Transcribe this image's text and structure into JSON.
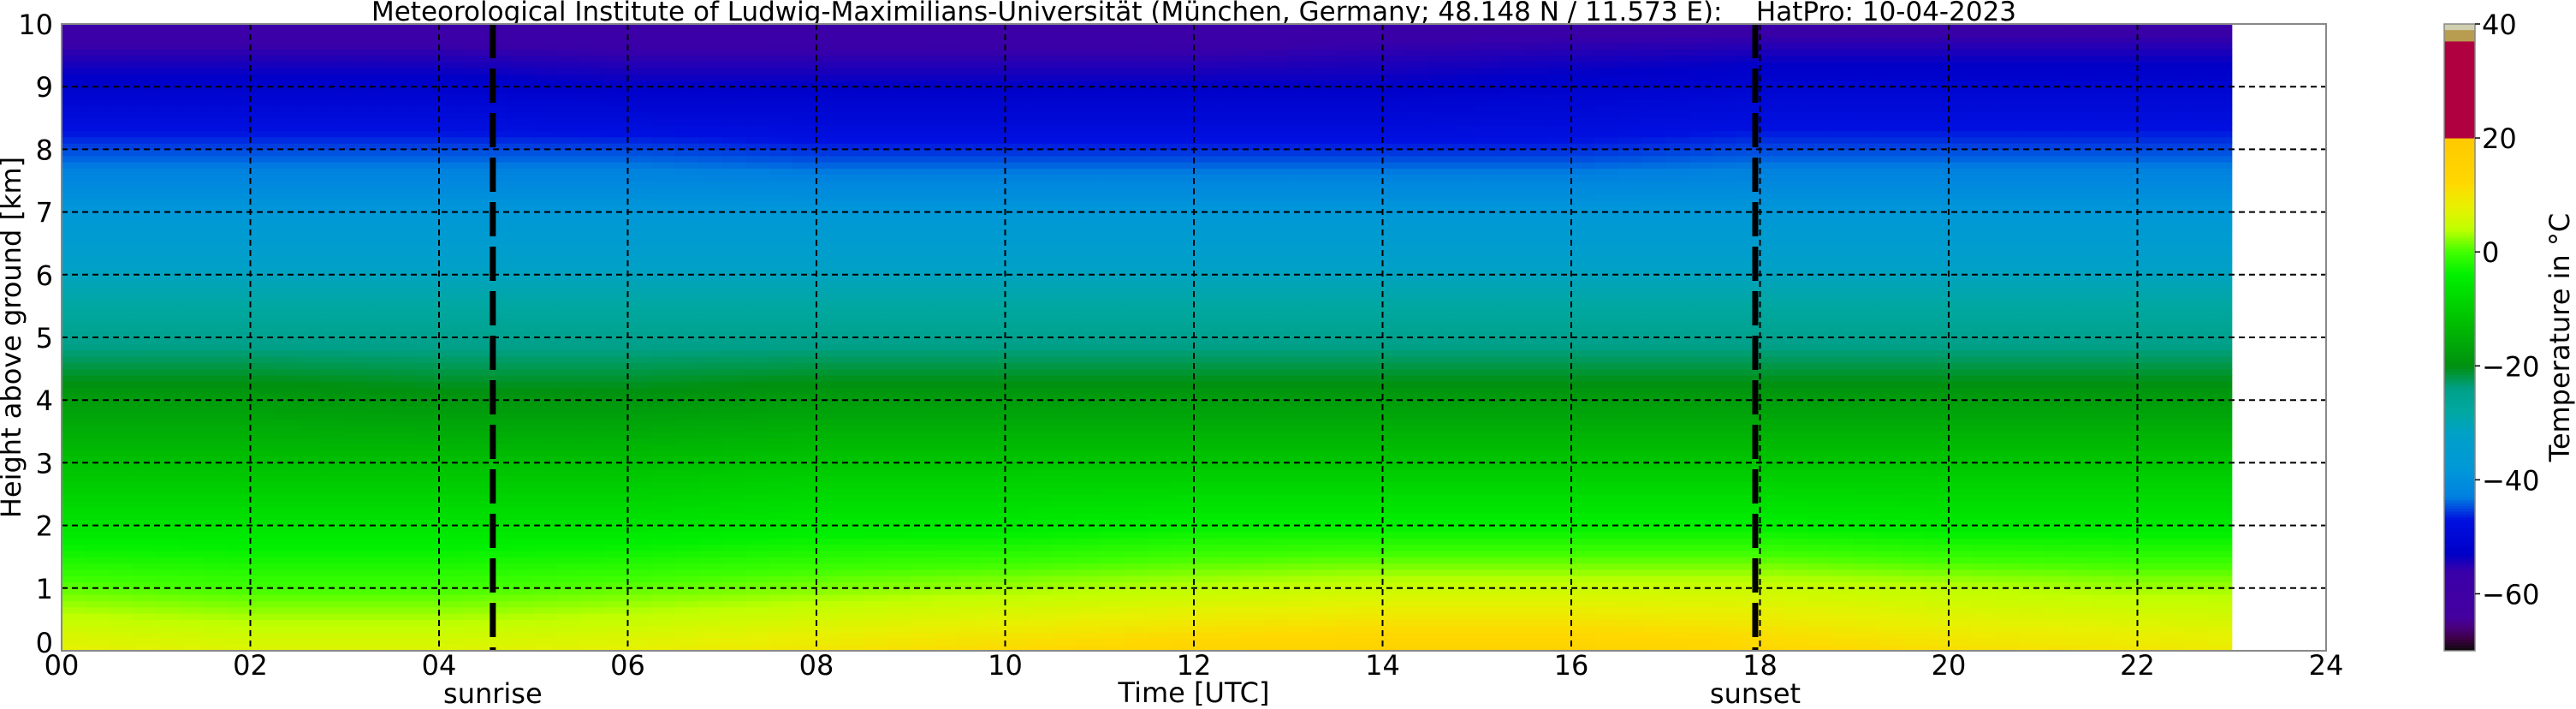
{
  "chart_data": {
    "type": "heatmap",
    "title": "Meteorological Institute of Ludwig-Maximilians-Universität (München, Germany; 48.148 N / 11.573 E):    HatPro: 10-04-2023",
    "xlabel": "Time [UTC]",
    "ylabel": "Height above ground [km]",
    "xlim": [
      0,
      24
    ],
    "ylim": [
      0,
      10
    ],
    "x_ticks": [
      "00",
      "02",
      "04",
      "06",
      "08",
      "10",
      "12",
      "14",
      "16",
      "18",
      "20",
      "22",
      "24"
    ],
    "y_ticks": [
      "0",
      "1",
      "2",
      "3",
      "4",
      "5",
      "6",
      "7",
      "8",
      "9",
      "10"
    ],
    "grid": true,
    "x_hours": [
      0,
      2,
      4,
      6,
      8,
      10,
      12,
      14,
      16,
      18,
      20,
      22,
      23
    ],
    "heights_km": [
      0,
      1,
      2,
      3,
      4,
      5,
      6,
      7,
      8,
      9,
      10
    ],
    "temperature_c": [
      [
        8,
        7,
        7,
        8,
        10,
        12,
        14,
        15,
        15,
        13,
        11,
        10,
        9
      ],
      [
        1,
        0,
        0,
        1,
        2,
        3,
        4,
        5,
        5,
        5,
        4,
        3,
        3
      ],
      [
        -6,
        -6,
        -6,
        -6,
        -5,
        -5,
        -4,
        -4,
        -4,
        -4,
        -5,
        -5,
        -5
      ],
      [
        -12,
        -12,
        -12,
        -12,
        -11,
        -11,
        -11,
        -11,
        -11,
        -11,
        -11,
        -11,
        -11
      ],
      [
        -18,
        -18,
        -19,
        -19,
        -18,
        -18,
        -18,
        -18,
        -18,
        -18,
        -18,
        -18,
        -18
      ],
      [
        -25,
        -25,
        -25,
        -25,
        -25,
        -25,
        -25,
        -25,
        -25,
        -25,
        -25,
        -25,
        -25
      ],
      [
        -31,
        -31,
        -31,
        -31,
        -31,
        -31,
        -31,
        -31,
        -31,
        -31,
        -31,
        -31,
        -31
      ],
      [
        -38,
        -38,
        -38,
        -38,
        -38,
        -38,
        -38,
        -38,
        -38,
        -38,
        -38,
        -38,
        -38
      ],
      [
        -45,
        -45,
        -45,
        -45,
        -46,
        -46,
        -46,
        -46,
        -46,
        -45,
        -45,
        -45,
        -45
      ],
      [
        -52,
        -52,
        -52,
        -53,
        -53,
        -53,
        -53,
        -53,
        -52,
        -51,
        -51,
        -51,
        -51
      ],
      [
        -58,
        -58,
        -58,
        -58,
        -58,
        -58,
        -58,
        -57,
        -57,
        -57,
        -57,
        -57,
        -57
      ]
    ],
    "events": [
      {
        "label": "sunrise",
        "x_hours": 4.57
      },
      {
        "label": "sunset",
        "x_hours": 17.95
      }
    ],
    "colorbar": {
      "label": "Temperature in °C",
      "range": [
        -70,
        40
      ],
      "ticks": [
        "40",
        "20",
        "0",
        "−20",
        "−40",
        "−60"
      ],
      "tick_values": [
        40,
        20,
        0,
        -20,
        -40,
        -60
      ],
      "stops": [
        [
          -70,
          "#0a0a0a"
        ],
        [
          -68,
          "#3a0040"
        ],
        [
          -66,
          "#48007a"
        ],
        [
          -64,
          "#4400a0"
        ],
        [
          -56,
          "#3a00a8"
        ],
        [
          -53,
          "#0000c8"
        ],
        [
          -47,
          "#0010e0"
        ],
        [
          -43,
          "#0080e0"
        ],
        [
          -38,
          "#0098d8"
        ],
        [
          -32,
          "#00a0c8"
        ],
        [
          -28,
          "#00a8a0"
        ],
        [
          -24,
          "#00a088"
        ],
        [
          -20,
          "#009010"
        ],
        [
          -12,
          "#00c000"
        ],
        [
          -4,
          "#00f000"
        ],
        [
          0,
          "#40ff00"
        ],
        [
          4,
          "#c0ff00"
        ],
        [
          8,
          "#e8f000"
        ],
        [
          12,
          "#ffd800"
        ],
        [
          20,
          "#ffc800"
        ],
        [
          20.01,
          "#b00040"
        ],
        [
          37,
          "#b00040"
        ],
        [
          37.01,
          "#b89c50"
        ],
        [
          39,
          "#b89c50"
        ],
        [
          39.01,
          "#d0d0b0"
        ],
        [
          40,
          "#d0d0b0"
        ]
      ]
    }
  }
}
